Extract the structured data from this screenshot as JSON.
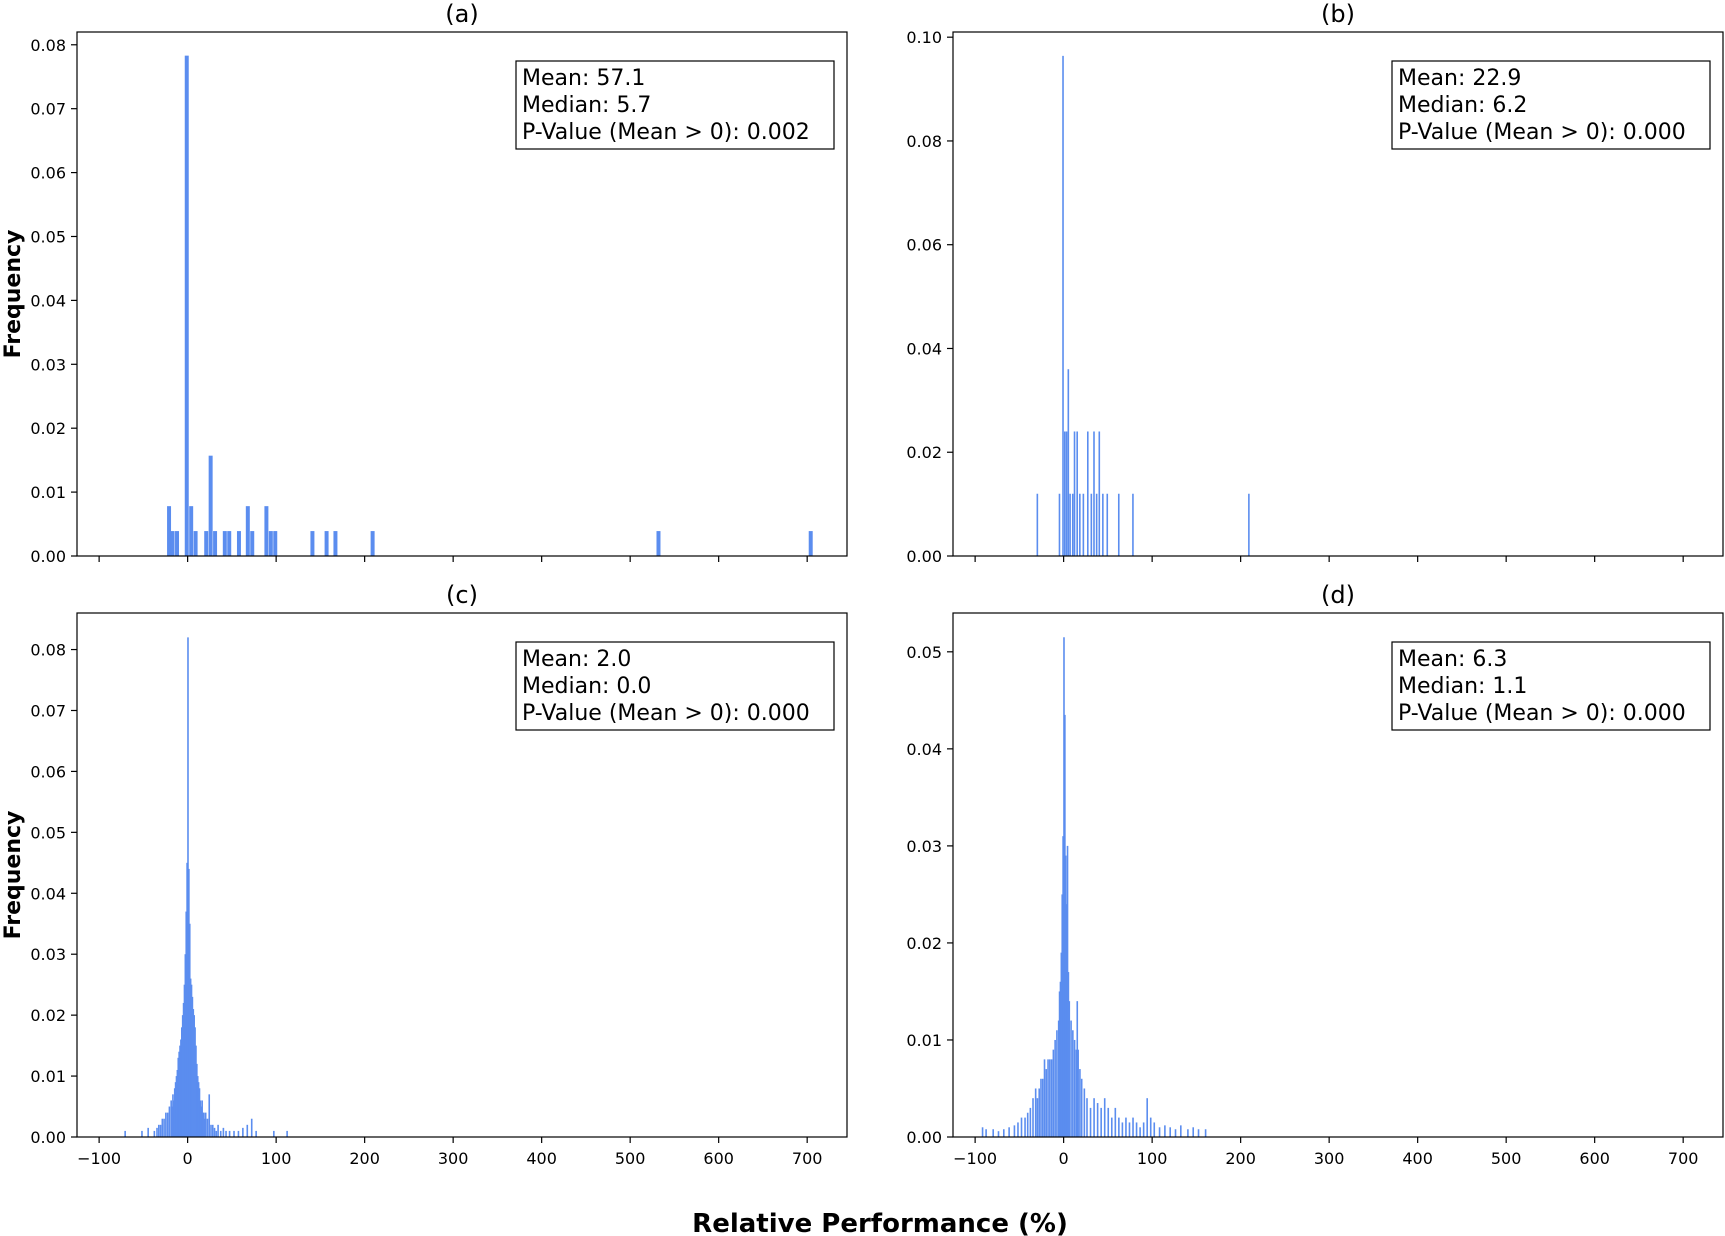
{
  "figure": {
    "xlabel": "Relative Performance (%)",
    "ylabel": "Frequency",
    "bar_color": "#5b8def"
  },
  "chart_data": [
    {
      "type": "bar",
      "panel_label": "(a)",
      "ylabel": "Frequency",
      "xlabel": "",
      "xlim": [
        -125,
        745
      ],
      "ylim": [
        0,
        0.082
      ],
      "xticks": [
        -100,
        0,
        100,
        200,
        300,
        400,
        500,
        600,
        700
      ],
      "xtick_labels_shown": false,
      "yticks": [
        0.0,
        0.01,
        0.02,
        0.03,
        0.04,
        0.05,
        0.06,
        0.07,
        0.08
      ],
      "ytick_labels": [
        "0.00",
        "0.01",
        "0.02",
        "0.03",
        "0.04",
        "0.05",
        "0.06",
        "0.07",
        "0.08"
      ],
      "bin_width": 4.5,
      "bins": [
        {
          "x": -21,
          "y": 0.0078
        },
        {
          "x": -17,
          "y": 0.0039
        },
        {
          "x": -12,
          "y": 0.0039
        },
        {
          "x": -1,
          "y": 0.0783
        },
        {
          "x": 4,
          "y": 0.0078
        },
        {
          "x": 9,
          "y": 0.0039
        },
        {
          "x": 21,
          "y": 0.0039
        },
        {
          "x": 26,
          "y": 0.0157
        },
        {
          "x": 31,
          "y": 0.0039
        },
        {
          "x": 42,
          "y": 0.0039
        },
        {
          "x": 47,
          "y": 0.0039
        },
        {
          "x": 58,
          "y": 0.0039
        },
        {
          "x": 68,
          "y": 0.0078
        },
        {
          "x": 73,
          "y": 0.0039
        },
        {
          "x": 89,
          "y": 0.0078
        },
        {
          "x": 94,
          "y": 0.0039
        },
        {
          "x": 99,
          "y": 0.0039
        },
        {
          "x": 141,
          "y": 0.0039
        },
        {
          "x": 157,
          "y": 0.0039
        },
        {
          "x": 167,
          "y": 0.0039
        },
        {
          "x": 209,
          "y": 0.0039
        },
        {
          "x": 532,
          "y": 0.0039
        },
        {
          "x": 704,
          "y": 0.0039
        }
      ],
      "stats": {
        "mean": "Mean: 57.1",
        "median": "Median: 5.7",
        "pvalue": "P-Value (Mean > 0): 0.002"
      },
      "legend_position": "top-right",
      "grid": false
    },
    {
      "type": "bar",
      "panel_label": "(b)",
      "ylabel": "",
      "xlabel": "",
      "xlim": [
        -125,
        745
      ],
      "ylim": [
        0,
        0.101
      ],
      "xticks": [
        -100,
        0,
        100,
        200,
        300,
        400,
        500,
        600,
        700
      ],
      "xtick_labels_shown": false,
      "yticks": [
        0.0,
        0.02,
        0.04,
        0.06,
        0.08,
        0.1
      ],
      "ytick_labels": [
        "0.00",
        "0.02",
        "0.04",
        "0.06",
        "0.08",
        "0.10"
      ],
      "bin_width": 1.2,
      "bins": [
        {
          "x": -30,
          "y": 0.012
        },
        {
          "x": -5,
          "y": 0.012
        },
        {
          "x": -1,
          "y": 0.0964
        },
        {
          "x": 1,
          "y": 0.024
        },
        {
          "x": 3,
          "y": 0.024
        },
        {
          "x": 5,
          "y": 0.036
        },
        {
          "x": 7,
          "y": 0.012
        },
        {
          "x": 10,
          "y": 0.012
        },
        {
          "x": 12,
          "y": 0.024
        },
        {
          "x": 15,
          "y": 0.024
        },
        {
          "x": 18,
          "y": 0.012
        },
        {
          "x": 22,
          "y": 0.012
        },
        {
          "x": 27,
          "y": 0.024
        },
        {
          "x": 31,
          "y": 0.012
        },
        {
          "x": 34,
          "y": 0.024
        },
        {
          "x": 37,
          "y": 0.012
        },
        {
          "x": 40,
          "y": 0.024
        },
        {
          "x": 44,
          "y": 0.012
        },
        {
          "x": 49,
          "y": 0.012
        },
        {
          "x": 62,
          "y": 0.012
        },
        {
          "x": 78,
          "y": 0.012
        },
        {
          "x": 209,
          "y": 0.012
        }
      ],
      "stats": {
        "mean": "Mean: 22.9",
        "median": "Median: 6.2",
        "pvalue": "P-Value (Mean > 0): 0.000"
      },
      "legend_position": "top-right",
      "grid": false
    },
    {
      "type": "bar",
      "panel_label": "(c)",
      "ylabel": "Frequency",
      "xlabel": "",
      "xlim": [
        -125,
        745
      ],
      "ylim": [
        0,
        0.086
      ],
      "xticks": [
        -100,
        0,
        100,
        200,
        300,
        400,
        500,
        600,
        700
      ],
      "xtick_labels": [
        "−100",
        "0",
        "100",
        "200",
        "300",
        "400",
        "500",
        "600",
        "700"
      ],
      "xtick_labels_shown": true,
      "yticks": [
        0.0,
        0.01,
        0.02,
        0.03,
        0.04,
        0.05,
        0.06,
        0.07,
        0.08
      ],
      "ytick_labels": [
        "0.00",
        "0.01",
        "0.02",
        "0.03",
        "0.04",
        "0.05",
        "0.06",
        "0.07",
        "0.08"
      ],
      "bin_width": 1,
      "bins": [
        {
          "x": -71,
          "y": 0.001
        },
        {
          "x": -52,
          "y": 0.001
        },
        {
          "x": -45,
          "y": 0.0015
        },
        {
          "x": -38,
          "y": 0.001
        },
        {
          "x": -35,
          "y": 0.0015
        },
        {
          "x": -33,
          "y": 0.002
        },
        {
          "x": -31,
          "y": 0.002
        },
        {
          "x": -29,
          "y": 0.003
        },
        {
          "x": -27,
          "y": 0.003
        },
        {
          "x": -25,
          "y": 0.004
        },
        {
          "x": -23,
          "y": 0.004
        },
        {
          "x": -21,
          "y": 0.005
        },
        {
          "x": -19,
          "y": 0.006
        },
        {
          "x": -18,
          "y": 0.005
        },
        {
          "x": -17,
          "y": 0.007
        },
        {
          "x": -16,
          "y": 0.006
        },
        {
          "x": -15,
          "y": 0.008
        },
        {
          "x": -14,
          "y": 0.009
        },
        {
          "x": -13,
          "y": 0.01
        },
        {
          "x": -12,
          "y": 0.011
        },
        {
          "x": -11,
          "y": 0.013
        },
        {
          "x": -10,
          "y": 0.014
        },
        {
          "x": -9,
          "y": 0.015
        },
        {
          "x": -8,
          "y": 0.016
        },
        {
          "x": -7,
          "y": 0.018
        },
        {
          "x": -6,
          "y": 0.02
        },
        {
          "x": -5,
          "y": 0.022
        },
        {
          "x": -4,
          "y": 0.025
        },
        {
          "x": -3,
          "y": 0.03
        },
        {
          "x": -2,
          "y": 0.037
        },
        {
          "x": -1,
          "y": 0.045
        },
        {
          "x": 0,
          "y": 0.082
        },
        {
          "x": 1,
          "y": 0.044
        },
        {
          "x": 2,
          "y": 0.035
        },
        {
          "x": 3,
          "y": 0.026
        },
        {
          "x": 4,
          "y": 0.025
        },
        {
          "x": 5,
          "y": 0.023
        },
        {
          "x": 6,
          "y": 0.021
        },
        {
          "x": 7,
          "y": 0.02
        },
        {
          "x": 8,
          "y": 0.018
        },
        {
          "x": 9,
          "y": 0.015
        },
        {
          "x": 10,
          "y": 0.012
        },
        {
          "x": 11,
          "y": 0.01
        },
        {
          "x": 12,
          "y": 0.009
        },
        {
          "x": 13,
          "y": 0.008
        },
        {
          "x": 14,
          "y": 0.006
        },
        {
          "x": 15,
          "y": 0.005
        },
        {
          "x": 16,
          "y": 0.006
        },
        {
          "x": 17,
          "y": 0.004
        },
        {
          "x": 18,
          "y": 0.004
        },
        {
          "x": 19,
          "y": 0.003
        },
        {
          "x": 20,
          "y": 0.004
        },
        {
          "x": 22,
          "y": 0.003
        },
        {
          "x": 24,
          "y": 0.007
        },
        {
          "x": 26,
          "y": 0.002
        },
        {
          "x": 28,
          "y": 0.002
        },
        {
          "x": 30,
          "y": 0.0015
        },
        {
          "x": 32,
          "y": 0.001
        },
        {
          "x": 34,
          "y": 0.002
        },
        {
          "x": 37,
          "y": 0.001
        },
        {
          "x": 40,
          "y": 0.0015
        },
        {
          "x": 43,
          "y": 0.001
        },
        {
          "x": 47,
          "y": 0.001
        },
        {
          "x": 52,
          "y": 0.001
        },
        {
          "x": 57,
          "y": 0.001
        },
        {
          "x": 62,
          "y": 0.0015
        },
        {
          "x": 67,
          "y": 0.002
        },
        {
          "x": 72,
          "y": 0.003
        },
        {
          "x": 77,
          "y": 0.001
        },
        {
          "x": 97,
          "y": 0.001
        },
        {
          "x": 112,
          "y": 0.001
        }
      ],
      "stats": {
        "mean": "Mean: 2.0",
        "median": "Median: 0.0",
        "pvalue": "P-Value (Mean > 0): 0.000"
      },
      "legend_position": "top-right",
      "grid": false
    },
    {
      "type": "bar",
      "panel_label": "(d)",
      "ylabel": "",
      "xlabel": "",
      "xlim": [
        -125,
        745
      ],
      "ylim": [
        0,
        0.054
      ],
      "xticks": [
        -100,
        0,
        100,
        200,
        300,
        400,
        500,
        600,
        700
      ],
      "xtick_labels": [
        "−100",
        "0",
        "100",
        "200",
        "300",
        "400",
        "500",
        "600",
        "700"
      ],
      "xtick_labels_shown": true,
      "yticks": [
        0.0,
        0.01,
        0.02,
        0.03,
        0.04,
        0.05
      ],
      "ytick_labels": [
        "0.00",
        "0.01",
        "0.02",
        "0.03",
        "0.04",
        "0.05"
      ],
      "bin_width": 1,
      "bins": [
        {
          "x": -92,
          "y": 0.001
        },
        {
          "x": -88,
          "y": 0.0008
        },
        {
          "x": -80,
          "y": 0.0008
        },
        {
          "x": -74,
          "y": 0.0006
        },
        {
          "x": -68,
          "y": 0.0008
        },
        {
          "x": -62,
          "y": 0.001
        },
        {
          "x": -56,
          "y": 0.0012
        },
        {
          "x": -52,
          "y": 0.0015
        },
        {
          "x": -48,
          "y": 0.002
        },
        {
          "x": -44,
          "y": 0.002
        },
        {
          "x": -41,
          "y": 0.0025
        },
        {
          "x": -38,
          "y": 0.003
        },
        {
          "x": -35,
          "y": 0.004
        },
        {
          "x": -32,
          "y": 0.005
        },
        {
          "x": -30,
          "y": 0.004
        },
        {
          "x": -28,
          "y": 0.005
        },
        {
          "x": -26,
          "y": 0.006
        },
        {
          "x": -24,
          "y": 0.006
        },
        {
          "x": -22,
          "y": 0.008
        },
        {
          "x": -20,
          "y": 0.007
        },
        {
          "x": -18,
          "y": 0.008
        },
        {
          "x": -16,
          "y": 0.008
        },
        {
          "x": -14,
          "y": 0.008
        },
        {
          "x": -12,
          "y": 0.009
        },
        {
          "x": -10,
          "y": 0.01
        },
        {
          "x": -8,
          "y": 0.011
        },
        {
          "x": -6,
          "y": 0.012
        },
        {
          "x": -5,
          "y": 0.015
        },
        {
          "x": -4,
          "y": 0.016
        },
        {
          "x": -3,
          "y": 0.019
        },
        {
          "x": -2,
          "y": 0.025
        },
        {
          "x": -1,
          "y": 0.031
        },
        {
          "x": 0,
          "y": 0.0515
        },
        {
          "x": 1,
          "y": 0.0435
        },
        {
          "x": 2,
          "y": 0.029
        },
        {
          "x": 3,
          "y": 0.024
        },
        {
          "x": 4,
          "y": 0.03
        },
        {
          "x": 5,
          "y": 0.017
        },
        {
          "x": 6,
          "y": 0.014
        },
        {
          "x": 8,
          "y": 0.012
        },
        {
          "x": 10,
          "y": 0.011
        },
        {
          "x": 12,
          "y": 0.01
        },
        {
          "x": 14,
          "y": 0.009
        },
        {
          "x": 15,
          "y": 0.014
        },
        {
          "x": 16,
          "y": 0.009
        },
        {
          "x": 18,
          "y": 0.007
        },
        {
          "x": 20,
          "y": 0.006
        },
        {
          "x": 23,
          "y": 0.005
        },
        {
          "x": 26,
          "y": 0.004
        },
        {
          "x": 30,
          "y": 0.003
        },
        {
          "x": 34,
          "y": 0.004
        },
        {
          "x": 38,
          "y": 0.0035
        },
        {
          "x": 42,
          "y": 0.003
        },
        {
          "x": 46,
          "y": 0.004
        },
        {
          "x": 50,
          "y": 0.003
        },
        {
          "x": 54,
          "y": 0.002
        },
        {
          "x": 58,
          "y": 0.003
        },
        {
          "x": 62,
          "y": 0.002
        },
        {
          "x": 66,
          "y": 0.0015
        },
        {
          "x": 70,
          "y": 0.002
        },
        {
          "x": 74,
          "y": 0.0015
        },
        {
          "x": 78,
          "y": 0.002
        },
        {
          "x": 82,
          "y": 0.0015
        },
        {
          "x": 86,
          "y": 0.001
        },
        {
          "x": 90,
          "y": 0.0015
        },
        {
          "x": 94,
          "y": 0.004
        },
        {
          "x": 98,
          "y": 0.002
        },
        {
          "x": 102,
          "y": 0.0015
        },
        {
          "x": 108,
          "y": 0.001
        },
        {
          "x": 114,
          "y": 0.0012
        },
        {
          "x": 120,
          "y": 0.001
        },
        {
          "x": 126,
          "y": 0.0008
        },
        {
          "x": 132,
          "y": 0.0012
        },
        {
          "x": 140,
          "y": 0.0008
        },
        {
          "x": 146,
          "y": 0.001
        },
        {
          "x": 152,
          "y": 0.0008
        },
        {
          "x": 160,
          "y": 0.0008
        }
      ],
      "stats": {
        "mean": "Mean: 6.3",
        "median": "Median: 1.1",
        "pvalue": "P-Value (Mean > 0): 0.000"
      },
      "legend_position": "top-right",
      "grid": false
    }
  ]
}
